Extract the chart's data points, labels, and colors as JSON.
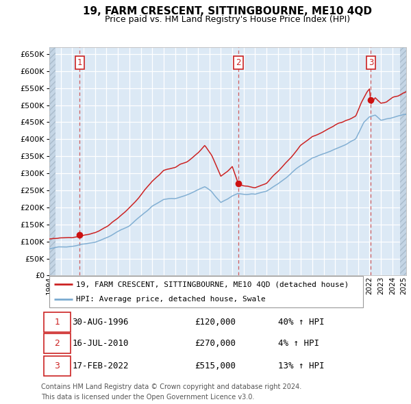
{
  "title": "19, FARM CRESCENT, SITTINGBOURNE, ME10 4QD",
  "subtitle": "Price paid vs. HM Land Registry's House Price Index (HPI)",
  "legend_line1": "19, FARM CRESCENT, SITTINGBOURNE, ME10 4QD (detached house)",
  "legend_line2": "HPI: Average price, detached house, Swale",
  "transactions": [
    {
      "num": 1,
      "date": "30-AUG-1996",
      "price": 120000,
      "pct": "40% ↑ HPI",
      "year": 1996.66
    },
    {
      "num": 2,
      "date": "16-JUL-2010",
      "price": 270000,
      "pct": "4% ↑ HPI",
      "year": 2010.54
    },
    {
      "num": 3,
      "date": "17-FEB-2022",
      "price": 515000,
      "pct": "13% ↑ HPI",
      "year": 2022.12
    }
  ],
  "price_labels": [
    "£120,000",
    "£270,000",
    "£515,000"
  ],
  "footnote1": "Contains HM Land Registry data © Crown copyright and database right 2024.",
  "footnote2": "This data is licensed under the Open Government Licence v3.0.",
  "ylim": [
    0,
    670000
  ],
  "yticks": [
    0,
    50000,
    100000,
    150000,
    200000,
    250000,
    300000,
    350000,
    400000,
    450000,
    500000,
    550000,
    600000,
    650000
  ],
  "xmin": 1994.0,
  "xmax": 2025.2,
  "hpi_color": "#7aaad0",
  "price_color": "#cc2222",
  "dot_color": "#cc1111",
  "bg_color": "#dce9f5",
  "grid_color": "#ffffff",
  "hatch_color": "#c4d5e5",
  "vline_color": "#cc4444",
  "title_fontsize": 11,
  "subtitle_fontsize": 9,
  "tick_fontsize": 8,
  "legend_fontsize": 8,
  "table_fontsize": 9,
  "footnote_fontsize": 7
}
